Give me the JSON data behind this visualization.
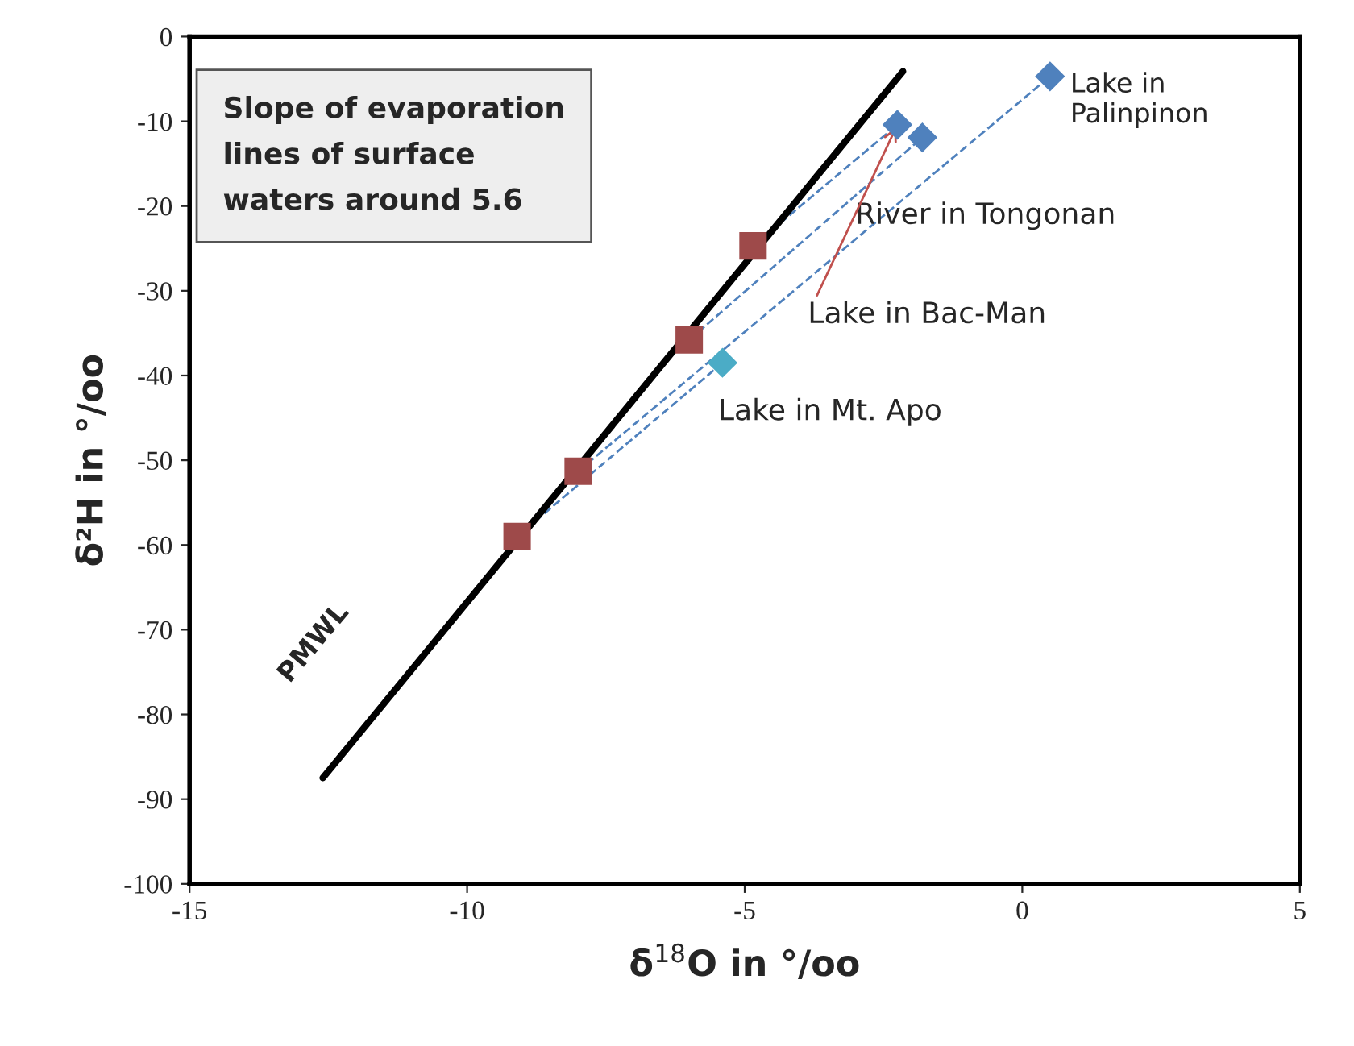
{
  "chart_data": {
    "type": "scatter",
    "xlabel": "δ$^{18}$O in °/oo",
    "ylabel": "δ²H in °/oo",
    "xlim": [
      -15,
      5
    ],
    "xticks": [
      -15,
      -10,
      -5,
      0,
      5
    ],
    "ylim": [
      -100,
      0
    ],
    "yticks": [
      -100,
      -90,
      -80,
      -70,
      -60,
      -50,
      -40,
      -30,
      -20,
      -10,
      0
    ],
    "grid": false,
    "legend": false,
    "series": [
      {
        "type": "line",
        "name": "PMWL",
        "color": "#000000",
        "line_style": "solid",
        "marker": "none",
        "x": [
          -12.6,
          -2.15
        ],
        "values": [
          -87.5,
          -4.1
        ]
      },
      {
        "type": "line",
        "color": "#4f81bd",
        "line_style": "dashed",
        "marker": "none",
        "x": [
          -9.1,
          -5.4
        ],
        "values": [
          -59,
          -38.5
        ]
      },
      {
        "type": "line",
        "color": "#4f81bd",
        "line_style": "dashed",
        "marker": "none",
        "x": [
          -8,
          0.5
        ],
        "values": [
          -51.3,
          -4.7
        ]
      },
      {
        "type": "line",
        "color": "#4f81bd",
        "line_style": "dashed",
        "marker": "none",
        "x": [
          -6,
          -1.8
        ],
        "values": [
          -35.8,
          -11.9
        ]
      },
      {
        "type": "line",
        "color": "#4f81bd",
        "line_style": "dashed",
        "marker": "none",
        "x": [
          -4.85,
          -2.25
        ],
        "values": [
          -24.7,
          -10.4
        ]
      },
      {
        "color": "#9e4a4a",
        "marker": "square",
        "x": [
          -9.1,
          -8,
          -6,
          -4.85
        ],
        "values": [
          -59,
          -51.3,
          -35.8,
          -24.7
        ]
      },
      {
        "color": "#4f81bd",
        "marker": "diamond",
        "x": [
          0.5,
          -2.25,
          -1.8
        ],
        "values": [
          -4.7,
          -10.4,
          -11.9
        ]
      },
      {
        "color": "#4bacc6",
        "marker": "diamond",
        "x": [
          -5.4
        ],
        "values": [
          -38.5
        ]
      }
    ],
    "annotations": [
      "Slope of evaporation\nlines of surface\nwaters around 5.6",
      {
        "text": "Lake in\nPalinpinon",
        "x": 0.5,
        "y": -4.7
      },
      {
        "text": "River in Tongonan",
        "x": -1.8,
        "y": -11.9
      },
      {
        "text": "Lake in Bac-Man",
        "x": -2.25,
        "y": -10.4
      },
      {
        "text": "Lake in Mt. Apo",
        "x": -5.4,
        "y": -38.5
      }
    ]
  }
}
